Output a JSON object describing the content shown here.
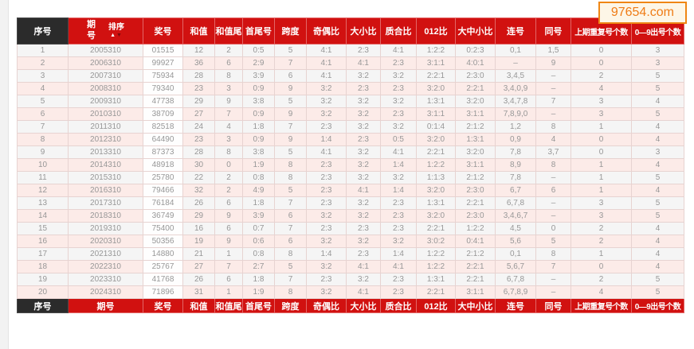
{
  "watermark": {
    "text": "97654.com"
  },
  "table": {
    "sort_label": "排序",
    "sort_arrow_up": "▲",
    "sort_arrow_down": "▼",
    "columns": [
      {
        "key": "xuhao",
        "label": "序号"
      },
      {
        "key": "qihao",
        "label": "期号"
      },
      {
        "key": "jianghao",
        "label": "奖号"
      },
      {
        "key": "hezhi",
        "label": "和值"
      },
      {
        "key": "hezhiwei",
        "label": "和值尾"
      },
      {
        "key": "shouweihao",
        "label": "首尾号"
      },
      {
        "key": "kuadu",
        "label": "跨度"
      },
      {
        "key": "jioubi",
        "label": "奇偶比"
      },
      {
        "key": "daxiaobi",
        "label": "大小比"
      },
      {
        "key": "zhihebi",
        "label": "质合比"
      },
      {
        "key": "bi012",
        "label": "012比"
      },
      {
        "key": "dazhongxiaobi",
        "label": "大中小比"
      },
      {
        "key": "lianhao",
        "label": "连号"
      },
      {
        "key": "tonghao",
        "label": "同号"
      },
      {
        "key": "shangqichongfu",
        "label": "上期重复号个数"
      },
      {
        "key": "chuhaogeshu",
        "label": "0—9出号个数"
      }
    ],
    "rows": [
      [
        "1",
        "2005310",
        "01515",
        "12",
        "2",
        "0:5",
        "5",
        "4:1",
        "2:3",
        "4:1",
        "1:2:2",
        "0:2:3",
        "0,1",
        "1,5",
        "0",
        "3"
      ],
      [
        "2",
        "2006310",
        "99927",
        "36",
        "6",
        "2:9",
        "7",
        "4:1",
        "4:1",
        "2:3",
        "3:1:1",
        "4:0:1",
        "–",
        "9",
        "0",
        "3"
      ],
      [
        "3",
        "2007310",
        "75934",
        "28",
        "8",
        "3:9",
        "6",
        "4:1",
        "3:2",
        "3:2",
        "2:2:1",
        "2:3:0",
        "3,4,5",
        "–",
        "2",
        "5"
      ],
      [
        "4",
        "2008310",
        "79340",
        "23",
        "3",
        "0:9",
        "9",
        "3:2",
        "2:3",
        "2:3",
        "3:2:0",
        "2:2:1",
        "3,4,0,9",
        "–",
        "4",
        "5"
      ],
      [
        "5",
        "2009310",
        "47738",
        "29",
        "9",
        "3:8",
        "5",
        "3:2",
        "3:2",
        "3:2",
        "1:3:1",
        "3:2:0",
        "3,4,7,8",
        "7",
        "3",
        "4"
      ],
      [
        "6",
        "2010310",
        "38709",
        "27",
        "7",
        "0:9",
        "9",
        "3:2",
        "3:2",
        "2:3",
        "3:1:1",
        "3:1:1",
        "7,8,9,0",
        "–",
        "3",
        "5"
      ],
      [
        "7",
        "2011310",
        "82518",
        "24",
        "4",
        "1:8",
        "7",
        "2:3",
        "3:2",
        "3:2",
        "0:1:4",
        "2:1:2",
        "1,2",
        "8",
        "1",
        "4"
      ],
      [
        "8",
        "2012310",
        "64490",
        "23",
        "3",
        "0:9",
        "9",
        "1:4",
        "2:3",
        "0:5",
        "3:2:0",
        "1:3:1",
        "0,9",
        "4",
        "0",
        "4"
      ],
      [
        "9",
        "2013310",
        "87373",
        "28",
        "8",
        "3:8",
        "5",
        "4:1",
        "3:2",
        "4:1",
        "2:2:1",
        "3:2:0",
        "7,8",
        "3,7",
        "0",
        "3"
      ],
      [
        "10",
        "2014310",
        "48918",
        "30",
        "0",
        "1:9",
        "8",
        "2:3",
        "3:2",
        "1:4",
        "1:2:2",
        "3:1:1",
        "8,9",
        "8",
        "1",
        "4"
      ],
      [
        "11",
        "2015310",
        "25780",
        "22",
        "2",
        "0:8",
        "8",
        "2:3",
        "3:2",
        "3:2",
        "1:1:3",
        "2:1:2",
        "7,8",
        "–",
        "1",
        "5"
      ],
      [
        "12",
        "2016310",
        "79466",
        "32",
        "2",
        "4:9",
        "5",
        "2:3",
        "4:1",
        "1:4",
        "3:2:0",
        "2:3:0",
        "6,7",
        "6",
        "1",
        "4"
      ],
      [
        "13",
        "2017310",
        "76184",
        "26",
        "6",
        "1:8",
        "7",
        "2:3",
        "3:2",
        "2:3",
        "1:3:1",
        "2:2:1",
        "6,7,8",
        "–",
        "3",
        "5"
      ],
      [
        "14",
        "2018310",
        "36749",
        "29",
        "9",
        "3:9",
        "6",
        "3:2",
        "3:2",
        "2:3",
        "3:2:0",
        "2:3:0",
        "3,4,6,7",
        "–",
        "3",
        "5"
      ],
      [
        "15",
        "2019310",
        "75400",
        "16",
        "6",
        "0:7",
        "7",
        "2:3",
        "2:3",
        "2:3",
        "2:2:1",
        "1:2:2",
        "4,5",
        "0",
        "2",
        "4"
      ],
      [
        "16",
        "2020310",
        "50356",
        "19",
        "9",
        "0:6",
        "6",
        "3:2",
        "3:2",
        "3:2",
        "3:0:2",
        "0:4:1",
        "5,6",
        "5",
        "2",
        "4"
      ],
      [
        "17",
        "2021310",
        "14880",
        "21",
        "1",
        "0:8",
        "8",
        "1:4",
        "2:3",
        "1:4",
        "1:2:2",
        "2:1:2",
        "0,1",
        "8",
        "1",
        "4"
      ],
      [
        "18",
        "2022310",
        "25767",
        "27",
        "7",
        "2:7",
        "5",
        "3:2",
        "4:1",
        "4:1",
        "1:2:2",
        "2:2:1",
        "5,6,7",
        "7",
        "0",
        "4"
      ],
      [
        "19",
        "2023310",
        "41768",
        "26",
        "6",
        "1:8",
        "7",
        "2:3",
        "3:2",
        "2:3",
        "1:3:1",
        "2:2:1",
        "6,7,8",
        "–",
        "2",
        "5"
      ],
      [
        "20",
        "2024310",
        "71896",
        "31",
        "1",
        "1:9",
        "8",
        "3:2",
        "4:1",
        "2:3",
        "2:2:1",
        "3:1:1",
        "6,7,8,9",
        "–",
        "4",
        "5"
      ]
    ]
  }
}
